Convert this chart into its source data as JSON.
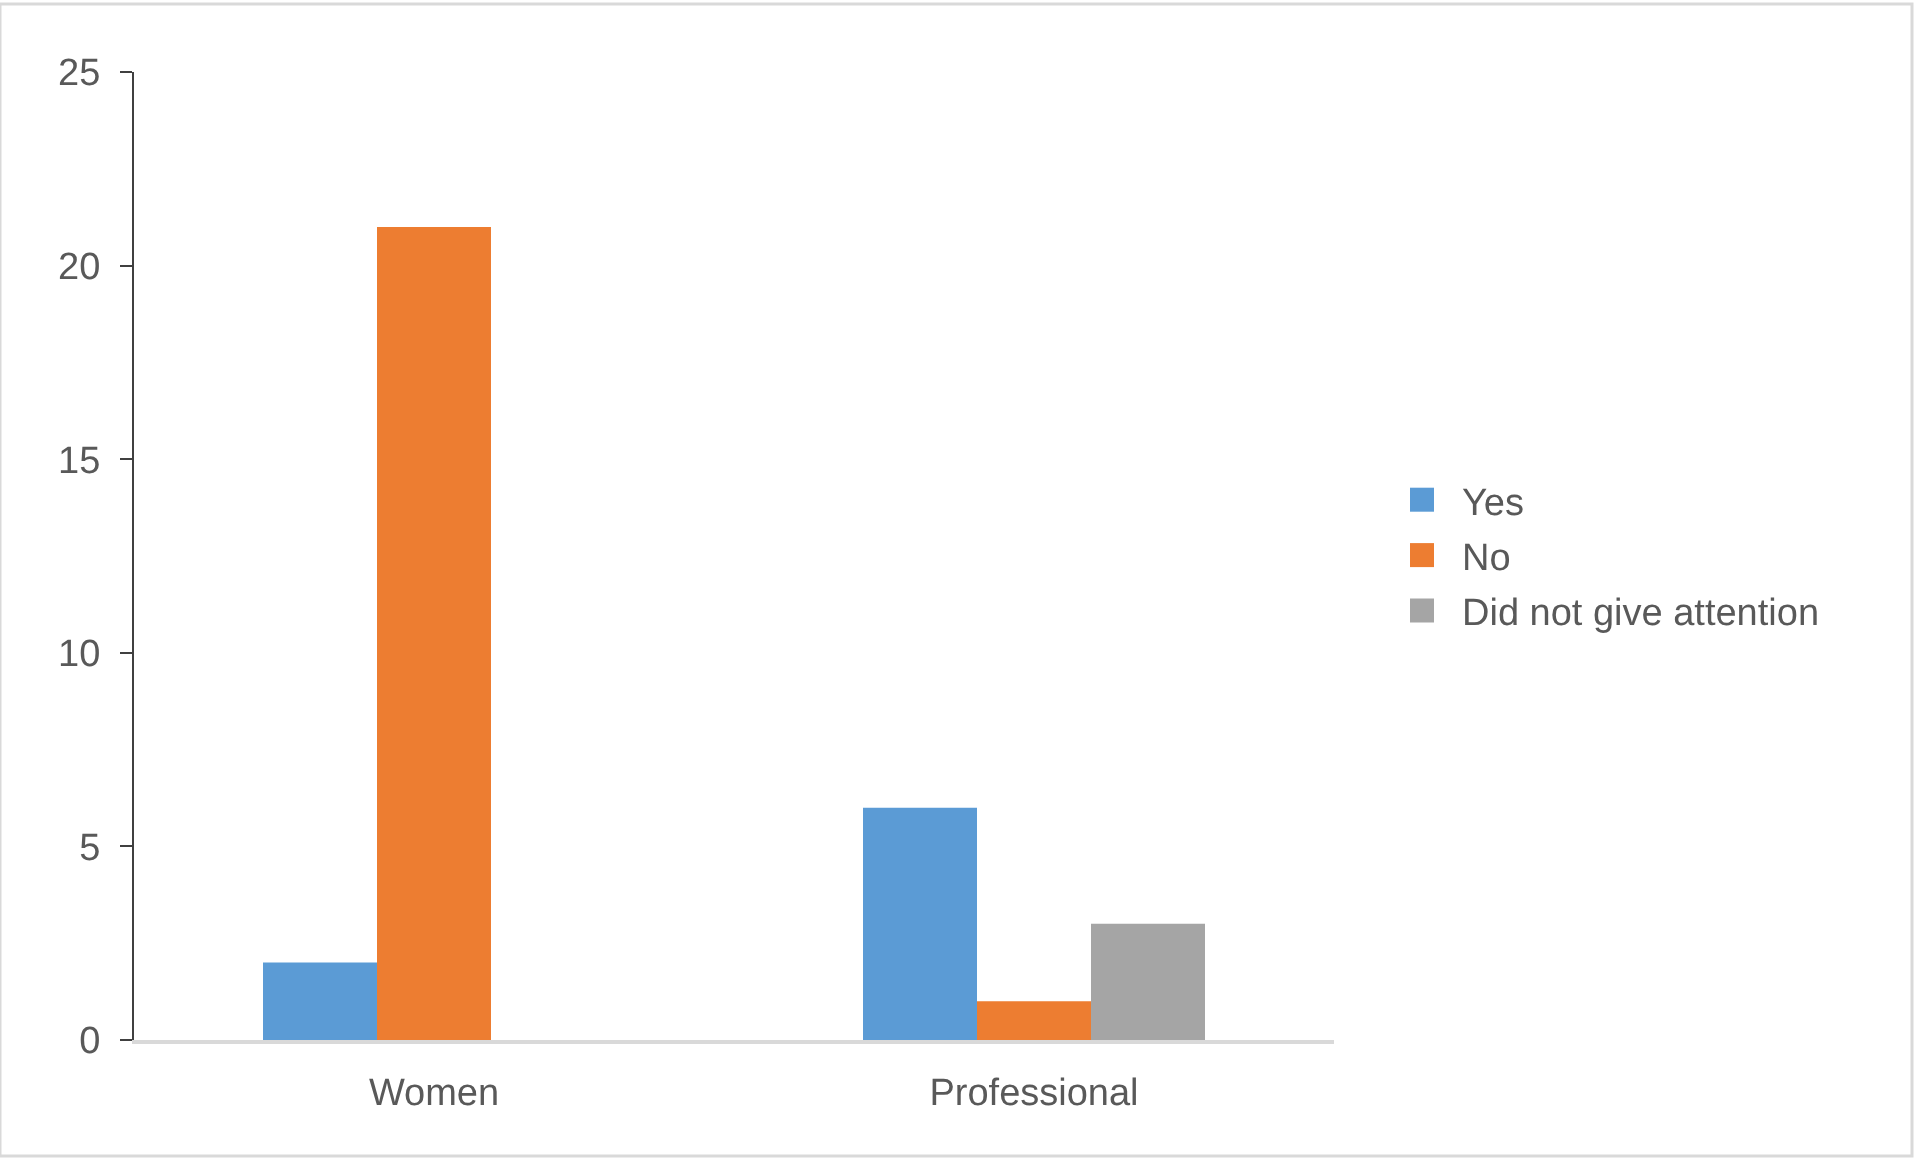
{
  "chart_data": {
    "type": "bar",
    "categories": [
      "Women",
      "Professional"
    ],
    "series": [
      {
        "name": "Yes",
        "color": "#5b9bd5",
        "values": [
          2,
          6
        ]
      },
      {
        "name": "No",
        "color": "#ed7d31",
        "values": [
          21,
          1
        ]
      },
      {
        "name": "Did not give attention",
        "color": "#a5a5a5",
        "values": [
          null,
          3
        ]
      }
    ],
    "ylim": [
      0,
      25
    ],
    "yticks": [
      0,
      5,
      10,
      15,
      20,
      25
    ],
    "legend": "right"
  }
}
